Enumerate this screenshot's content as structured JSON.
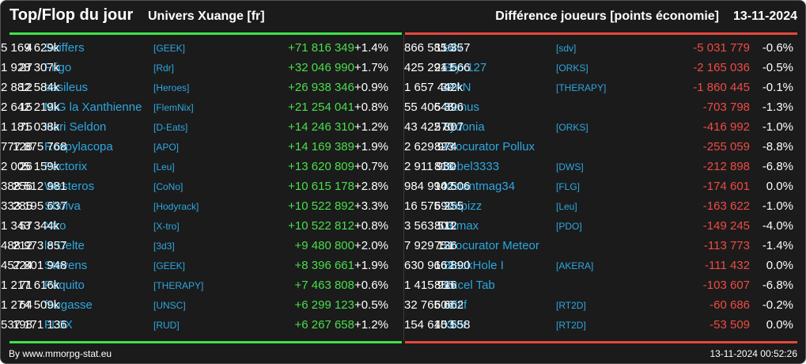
{
  "header": {
    "title": "Top/Flop du jour",
    "subtitle": "Univers Xuange [fr]",
    "criteria": "Différence joueurs [points économie]",
    "date": "13-11-2024"
  },
  "colors": {
    "top": "#3fe24a",
    "flop": "#e5483f",
    "name": "#2da7e0",
    "background": "#1b1b1b"
  },
  "top": [
    {
      "rank": "4",
      "name": "Seiffers",
      "alliance": "[GEEK]",
      "points": "5 169 629k",
      "diff": "+71 816 349",
      "pct": "+1.4%"
    },
    {
      "rank": "27",
      "name": "Frigo",
      "alliance": "[Rdr]",
      "points": "1 928 307k",
      "diff": "+32 046 990",
      "pct": "+1.7%"
    },
    {
      "rank": "12",
      "name": "basileus",
      "alliance": "[Heroes]",
      "points": "2 882 584k",
      "diff": "+26 938 346",
      "pct": "+0.9%"
    },
    {
      "rank": "15",
      "name": "MiG la Xanthienne",
      "alliance": "[FlemNix]",
      "points": "2 642 219k",
      "diff": "+21 254 041",
      "pct": "+0.8%"
    },
    {
      "rank": "75",
      "name": "Hari Seldon",
      "alliance": "[D-Eats]",
      "points": "1 181 038k",
      "diff": "+14 246 310",
      "pct": "+1.2%"
    },
    {
      "rank": "128",
      "name": "Rospylacopa",
      "alliance": "[APO]",
      "points": "777 875 768",
      "diff": "+14 169 389",
      "pct": "+1.9%"
    },
    {
      "rank": "26",
      "name": "Pactorix",
      "alliance": "[Leu]",
      "points": "2 005 159k",
      "diff": "+13 620 809",
      "pct": "+0.7%"
    },
    {
      "rank": "256",
      "name": "Westeros",
      "alliance": "[CoNo]",
      "points": "388 512 981",
      "diff": "+10 615 178",
      "pct": "+2.8%"
    },
    {
      "rank": "285",
      "name": "Sholva",
      "alliance": "[Hodyrack]",
      "points": "333 195 637",
      "diff": "+10 522 892",
      "pct": "+3.3%"
    },
    {
      "rank": "57",
      "name": "Xtro",
      "alliance": "[X-tro]",
      "points": "1 343 344k",
      "diff": "+10 522 812",
      "pct": "+0.8%"
    },
    {
      "rank": "212",
      "name": "le Celte",
      "alliance": "[3d3]",
      "points": "488 973 857",
      "diff": "+9 480 800",
      "pct": "+2.0%"
    },
    {
      "rank": "224",
      "name": "Stevens",
      "alliance": "[GEEK]",
      "points": "457 801 948",
      "diff": "+8 396 661",
      "pct": "+1.9%"
    },
    {
      "rank": "71",
      "name": "Paquito",
      "alliance": "[THERAPY]",
      "points": "1 217 616k",
      "diff": "+7 463 808",
      "pct": "+0.6%"
    },
    {
      "rank": "64",
      "name": "fougasse",
      "alliance": "[UNSC]",
      "points": "1 274 509k",
      "diff": "+6 299 123",
      "pct": "+0.5%"
    },
    {
      "rank": "198",
      "name": "FL0X",
      "alliance": "[RUD]",
      "points": "537 171 136",
      "diff": "+6 267 658",
      "pct": "+1.2%"
    }
  ],
  "flop": [
    {
      "rank": "116",
      "name": "sdv",
      "alliance": "[sdv]",
      "points": "866 585 357",
      "diff": "-5 031 779",
      "pct": "-0.6%"
    },
    {
      "rank": "241",
      "name": "Styx127",
      "alliance": "[ORKS]",
      "points": "425 291 566",
      "diff": "-2 165 036",
      "pct": "-0.5%"
    },
    {
      "rank": "39",
      "name": "WAN",
      "alliance": "[THERAPY]",
      "points": "1 657 442k",
      "diff": "-1 860 445",
      "pct": "-0.1%"
    },
    {
      "rank": "548",
      "name": "manus",
      "alliance": "",
      "points": "55 406 396",
      "diff": "-703 798",
      "pct": "-1.3%"
    },
    {
      "rank": "570",
      "name": "cydonia",
      "alliance": "[ORKS]",
      "points": "43 422 807",
      "diff": "-416 992",
      "pct": "-1.0%"
    },
    {
      "rank": "823",
      "name": "Procurator Pollux",
      "alliance": "",
      "points": "2 629 974",
      "diff": "-255 059",
      "pct": "-8.8%"
    },
    {
      "rank": "818",
      "name": "bebel3333",
      "alliance": "[DWS]",
      "points": "2 911 930",
      "diff": "-212 898",
      "pct": "-6.8%"
    },
    {
      "rank": "102",
      "name": "instantmag34",
      "alliance": "[FLG]",
      "points": "984 994 506",
      "diff": "-174 601",
      "pct": "0.0%"
    },
    {
      "rank": "690",
      "name": "Snipizz",
      "alliance": "[Leu]",
      "points": "16 575 255",
      "diff": "-163 622",
      "pct": "-1.0%"
    },
    {
      "rank": "803",
      "name": "Jumax",
      "alliance": "[PDO]",
      "points": "3 563 512",
      "diff": "-149 245",
      "pct": "-4.0%"
    },
    {
      "rank": "751",
      "name": "Procurator Meteor",
      "alliance": "",
      "points": "7 929 136",
      "diff": "-113 773",
      "pct": "-1.4%"
    },
    {
      "rank": "162",
      "name": "BlackHole I",
      "alliance": "[AKERA]",
      "points": "630 966 890",
      "diff": "-111 432",
      "pct": "0.0%"
    },
    {
      "rank": "856",
      "name": "Excel Tab",
      "alliance": "",
      "points": "1 415 916",
      "diff": "-103 607",
      "pct": "-6.8%"
    },
    {
      "rank": "606",
      "name": "Stitif",
      "alliance": "[RT2D]",
      "points": "32 765 662",
      "diff": "-60 686",
      "pct": "-0.2%"
    },
    {
      "rank": "403",
      "name": "xlr8r",
      "alliance": "[RT2D]",
      "points": "154 615 558",
      "diff": "-53 509",
      "pct": "0.0%"
    }
  ],
  "footer": {
    "source": "By www.mmorpg-stat.eu",
    "timestamp": "13-11-2024 00:52:26"
  }
}
